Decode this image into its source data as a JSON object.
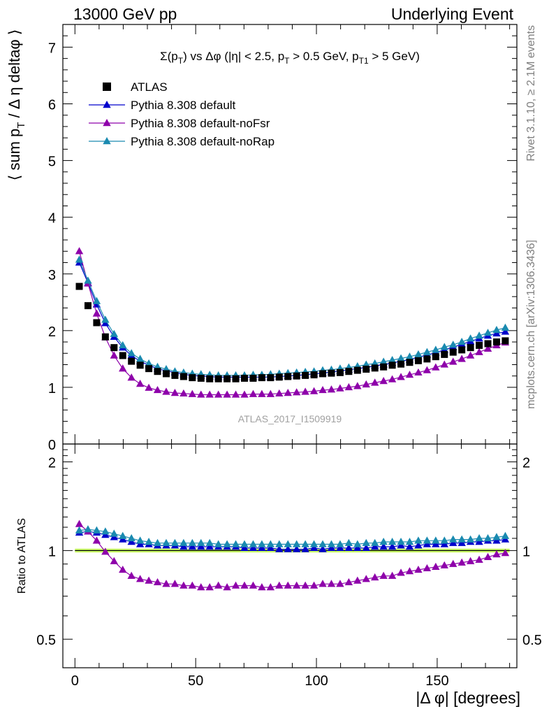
{
  "header": {
    "left": "13000 GeV pp",
    "right": "Underlying Event"
  },
  "side_text": {
    "rivet": "Rivet 3.1.10, ≥ 2.1M events",
    "mcplots": "mcplots.cern.ch [arXiv:1306.3436]"
  },
  "chart_data": [
    {
      "type": "scatter",
      "panel": "main",
      "title": "Σ(p_T) vs Δφ (|η| < 2.5, p_T > 0.5 GeV, p_T1 > 5 GeV)",
      "ylabel": "⟨ sum p_T / Δ η deltaφ ⟩",
      "watermark": "ATLAS_2017_I1509919",
      "xlim": [
        -5,
        183
      ],
      "ylim": [
        0,
        7.4
      ],
      "yticks": [
        0,
        1,
        2,
        3,
        4,
        5,
        6,
        7
      ],
      "legend_position": "top-left",
      "x": [
        1.8,
        5.4,
        9,
        12.6,
        16.2,
        19.8,
        23.4,
        27,
        30.6,
        34.2,
        37.8,
        41.4,
        45,
        48.6,
        52.2,
        55.8,
        59.4,
        63,
        66.6,
        70.2,
        73.8,
        77.4,
        81,
        84.6,
        88.2,
        91.8,
        95.4,
        99,
        102.6,
        106.2,
        109.8,
        113.4,
        117,
        120.6,
        124.2,
        127.8,
        131.4,
        135,
        138.6,
        142.2,
        145.8,
        149.4,
        153,
        156.6,
        160.2,
        163.8,
        167.4,
        171,
        174.6,
        178.2
      ],
      "series": [
        {
          "name": "ATLAS",
          "color": "#000000",
          "marker": "square",
          "values": [
            2.78,
            2.44,
            2.14,
            1.89,
            1.7,
            1.56,
            1.46,
            1.39,
            1.33,
            1.28,
            1.24,
            1.21,
            1.19,
            1.17,
            1.16,
            1.15,
            1.15,
            1.15,
            1.15,
            1.16,
            1.16,
            1.17,
            1.17,
            1.18,
            1.19,
            1.2,
            1.21,
            1.22,
            1.24,
            1.25,
            1.26,
            1.28,
            1.3,
            1.32,
            1.34,
            1.36,
            1.39,
            1.41,
            1.44,
            1.47,
            1.5,
            1.54,
            1.58,
            1.62,
            1.66,
            1.7,
            1.74,
            1.77,
            1.8,
            1.82
          ]
        },
        {
          "name": "Pythia 8.308 default",
          "color": "#0000cc",
          "marker": "triangle",
          "values": [
            3.2,
            2.84,
            2.46,
            2.13,
            1.89,
            1.7,
            1.56,
            1.46,
            1.39,
            1.33,
            1.29,
            1.26,
            1.23,
            1.21,
            1.2,
            1.19,
            1.18,
            1.18,
            1.18,
            1.18,
            1.18,
            1.18,
            1.18,
            1.19,
            1.2,
            1.21,
            1.22,
            1.24,
            1.25,
            1.27,
            1.29,
            1.31,
            1.33,
            1.35,
            1.38,
            1.4,
            1.43,
            1.46,
            1.49,
            1.53,
            1.57,
            1.61,
            1.66,
            1.71,
            1.76,
            1.81,
            1.86,
            1.91,
            1.95,
            1.98
          ]
        },
        {
          "name": "Pythia 8.308 default-noFsr",
          "color": "#8e00aa",
          "marker": "triangle",
          "values": [
            3.4,
            2.83,
            2.3,
            1.88,
            1.56,
            1.33,
            1.17,
            1.06,
            0.99,
            0.95,
            0.92,
            0.9,
            0.89,
            0.88,
            0.87,
            0.87,
            0.87,
            0.87,
            0.87,
            0.87,
            0.88,
            0.88,
            0.88,
            0.89,
            0.9,
            0.91,
            0.92,
            0.93,
            0.95,
            0.96,
            0.98,
            1.0,
            1.02,
            1.05,
            1.08,
            1.11,
            1.14,
            1.18,
            1.22,
            1.26,
            1.3,
            1.35,
            1.4,
            1.45,
            1.5,
            1.56,
            1.62,
            1.68,
            1.74,
            1.79
          ]
        },
        {
          "name": "Pythia 8.308 default-noRap",
          "color": "#1a8ab0",
          "marker": "triangle",
          "values": [
            3.25,
            2.88,
            2.52,
            2.19,
            1.94,
            1.74,
            1.6,
            1.5,
            1.42,
            1.36,
            1.32,
            1.28,
            1.26,
            1.24,
            1.23,
            1.22,
            1.21,
            1.21,
            1.21,
            1.21,
            1.22,
            1.22,
            1.23,
            1.24,
            1.25,
            1.26,
            1.27,
            1.28,
            1.3,
            1.31,
            1.33,
            1.35,
            1.37,
            1.4,
            1.42,
            1.45,
            1.48,
            1.51,
            1.54,
            1.58,
            1.62,
            1.66,
            1.71,
            1.75,
            1.8,
            1.86,
            1.91,
            1.96,
            2.01,
            2.05
          ]
        }
      ]
    },
    {
      "type": "scatter",
      "panel": "ratio",
      "ylabel": "Ratio to ATLAS",
      "xlabel": "|Δ φ| [degrees]",
      "xlim": [
        -5,
        183
      ],
      "ylim": [
        0.4,
        2.3
      ],
      "yscale": "log",
      "yticks": [
        0.5,
        1,
        2
      ],
      "xticks": [
        0,
        50,
        100,
        150
      ],
      "reference_band": {
        "color": "#ccff66",
        "range": [
          0.985,
          1.015
        ]
      },
      "x": [
        1.8,
        5.4,
        9,
        12.6,
        16.2,
        19.8,
        23.4,
        27,
        30.6,
        34.2,
        37.8,
        41.4,
        45,
        48.6,
        52.2,
        55.8,
        59.4,
        63,
        66.6,
        70.2,
        73.8,
        77.4,
        81,
        84.6,
        88.2,
        91.8,
        95.4,
        99,
        102.6,
        106.2,
        109.8,
        113.4,
        117,
        120.6,
        124.2,
        127.8,
        131.4,
        135,
        138.6,
        142.2,
        145.8,
        149.4,
        153,
        156.6,
        160.2,
        163.8,
        167.4,
        171,
        174.6,
        178.2
      ],
      "series": [
        {
          "name": "Pythia 8.308 default",
          "color": "#0000cc",
          "marker": "triangle",
          "values": [
            1.15,
            1.16,
            1.15,
            1.13,
            1.11,
            1.09,
            1.07,
            1.05,
            1.05,
            1.04,
            1.04,
            1.04,
            1.03,
            1.03,
            1.03,
            1.03,
            1.03,
            1.03,
            1.03,
            1.02,
            1.02,
            1.02,
            1.02,
            1.01,
            1.01,
            1.01,
            1.01,
            1.02,
            1.01,
            1.02,
            1.02,
            1.02,
            1.02,
            1.02,
            1.03,
            1.03,
            1.03,
            1.04,
            1.03,
            1.04,
            1.05,
            1.05,
            1.05,
            1.06,
            1.06,
            1.07,
            1.07,
            1.08,
            1.08,
            1.09
          ]
        },
        {
          "name": "Pythia 8.308 default-noFsr",
          "color": "#8e00aa",
          "marker": "triangle",
          "values": [
            1.23,
            1.16,
            1.08,
            0.99,
            0.92,
            0.86,
            0.82,
            0.8,
            0.79,
            0.78,
            0.77,
            0.77,
            0.76,
            0.76,
            0.75,
            0.75,
            0.76,
            0.75,
            0.76,
            0.76,
            0.76,
            0.75,
            0.75,
            0.76,
            0.76,
            0.76,
            0.76,
            0.76,
            0.77,
            0.77,
            0.77,
            0.78,
            0.79,
            0.8,
            0.81,
            0.82,
            0.82,
            0.84,
            0.85,
            0.86,
            0.87,
            0.88,
            0.89,
            0.9,
            0.91,
            0.92,
            0.93,
            0.95,
            0.97,
            0.98
          ]
        },
        {
          "name": "Pythia 8.308 default-noRap",
          "color": "#1a8ab0",
          "marker": "triangle",
          "values": [
            1.17,
            1.18,
            1.17,
            1.16,
            1.14,
            1.12,
            1.1,
            1.08,
            1.07,
            1.06,
            1.06,
            1.06,
            1.06,
            1.06,
            1.06,
            1.06,
            1.05,
            1.05,
            1.05,
            1.05,
            1.05,
            1.05,
            1.05,
            1.05,
            1.05,
            1.05,
            1.05,
            1.05,
            1.05,
            1.05,
            1.05,
            1.06,
            1.05,
            1.06,
            1.06,
            1.07,
            1.07,
            1.07,
            1.07,
            1.08,
            1.08,
            1.08,
            1.08,
            1.09,
            1.09,
            1.09,
            1.1,
            1.1,
            1.11,
            1.12
          ]
        }
      ]
    }
  ]
}
